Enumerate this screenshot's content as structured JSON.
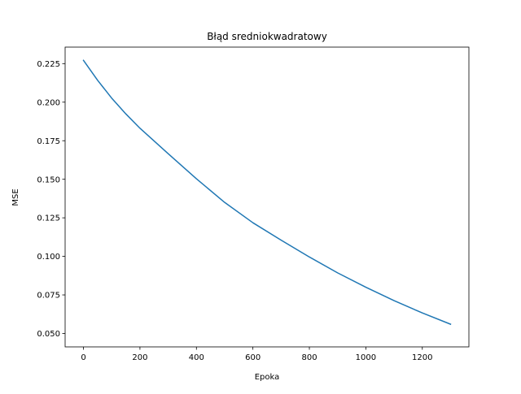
{
  "chart_data": {
    "type": "line",
    "title": "Błąd sredniokwadratowy",
    "xlabel": "Epoka",
    "ylabel": "MSE",
    "xlim": [
      -65,
      1365
    ],
    "ylim": [
      0.0413,
      0.2357
    ],
    "xticks": [
      0,
      200,
      400,
      600,
      800,
      1000,
      1200
    ],
    "yticks": [
      0.05,
      0.075,
      0.1,
      0.125,
      0.15,
      0.175,
      0.2,
      0.225
    ],
    "xtick_labels": [
      "0",
      "200",
      "400",
      "600",
      "800",
      "1000",
      "1200"
    ],
    "ytick_labels": [
      "0.050",
      "0.075",
      "0.100",
      "0.125",
      "0.150",
      "0.175",
      "0.200",
      "0.225"
    ],
    "grid": false,
    "legend": false,
    "series": [
      {
        "color": "#1f77b4",
        "x": [
          0,
          50,
          100,
          150,
          200,
          300,
          400,
          500,
          600,
          700,
          800,
          900,
          1000,
          1100,
          1200,
          1300
        ],
        "y": [
          0.2271,
          0.2142,
          0.2026,
          0.1924,
          0.1831,
          0.1666,
          0.1503,
          0.135,
          0.1218,
          0.1105,
          0.0996,
          0.0893,
          0.08,
          0.0713,
          0.0633,
          0.056
        ]
      }
    ]
  }
}
